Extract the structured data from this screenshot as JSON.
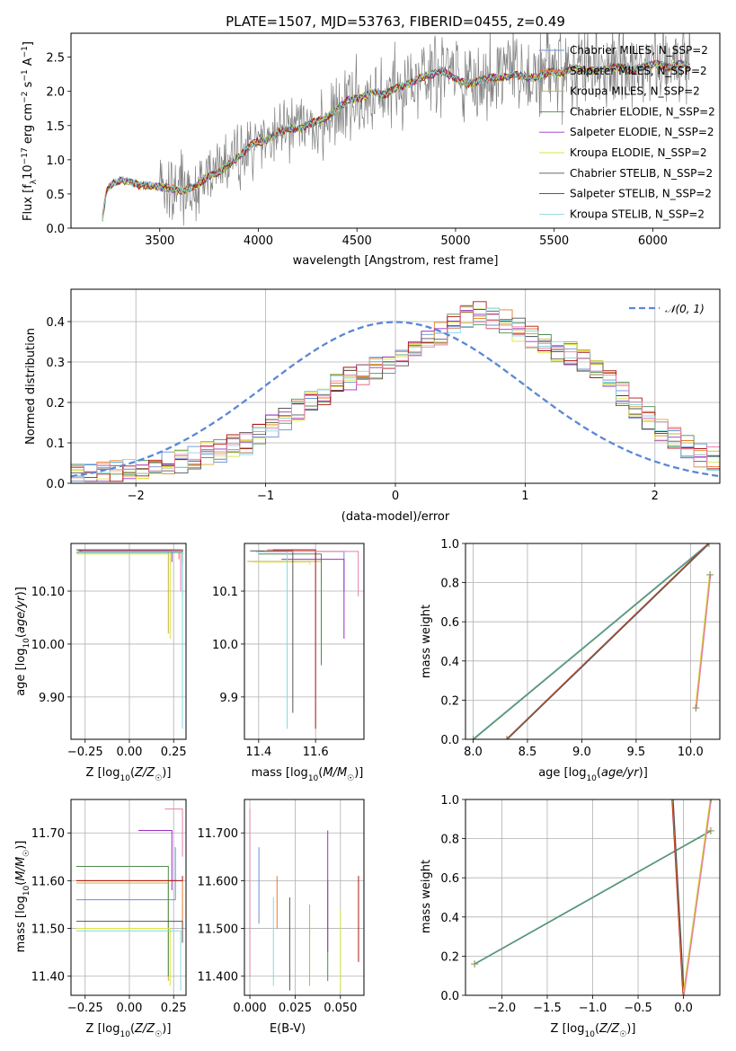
{
  "colors": {
    "Chabrier MILES": "#6b8ed6",
    "Salpeter MILES": "#e67a2a",
    "Kroupa MILES": "#c9b23a",
    "Chabrier ELODIE": "#4f8a4f",
    "Salpeter ELODIE": "#9b30c0",
    "Kroupa ELODIE": "#d8e640",
    "Chabrier STELIB": "#555555",
    "Salpeter STELIB": "#b01515",
    "Kroupa STELIB": "#86d8e0",
    "extra": "#e87fb0"
  },
  "chart_data": [
    {
      "type": "line",
      "title": "PLATE=1507, MJD=53763, FIBERID=0455, z=0.49",
      "xlabel": "wavelength [Angstrom, rest frame]",
      "ylabel": "Flux [f_λ10^-17 erg cm^-2 s^-1 A^-1]",
      "xlim": [
        3050,
        6340
      ],
      "ylim": [
        0,
        2.85
      ],
      "xticks": [
        3500,
        4000,
        4500,
        5000,
        5500,
        6000
      ],
      "yticks": [
        0.0,
        0.5,
        1.0,
        1.5,
        2.0,
        2.5
      ],
      "legend": "top-right",
      "series": [
        {
          "name": "Chabrier MILES, N_SSP=2"
        },
        {
          "name": "Salpeter MILES, N_SSP=2"
        },
        {
          "name": "Kroupa MILES, N_SSP=2"
        },
        {
          "name": "Chabrier ELODIE, N_SSP=2"
        },
        {
          "name": "Salpeter ELODIE, N_SSP=2"
        },
        {
          "name": "Kroupa ELODIE, N_SSP=2"
        },
        {
          "name": "Chabrier STELIB, N_SSP=2"
        },
        {
          "name": "Salpeter STELIB, N_SSP=2"
        },
        {
          "name": "Kroupa STELIB, N_SSP=2"
        }
      ],
      "model_x": [
        3210,
        3230,
        3260,
        3300,
        3350,
        3400,
        3450,
        3500,
        3560,
        3620,
        3680,
        3740,
        3800,
        3860,
        3920,
        3980,
        4040,
        4100,
        4160,
        4220,
        4280,
        4340,
        4400,
        4460,
        4520,
        4580,
        4640,
        4700,
        4760,
        4820,
        4880,
        4940,
        5000,
        5060,
        5120,
        5180,
        5240,
        5300,
        5360,
        5420,
        5480,
        5540,
        5600,
        5660,
        5720,
        5780,
        5840,
        5900,
        5960,
        6020,
        6080,
        6140,
        6190
      ],
      "model_y": [
        0.15,
        0.55,
        0.65,
        0.7,
        0.68,
        0.62,
        0.63,
        0.6,
        0.58,
        0.55,
        0.62,
        0.74,
        0.83,
        0.95,
        1.1,
        1.25,
        1.28,
        1.4,
        1.45,
        1.47,
        1.55,
        1.6,
        1.75,
        1.88,
        1.9,
        2.0,
        1.95,
        2.05,
        2.1,
        2.2,
        2.25,
        2.3,
        2.18,
        2.1,
        2.15,
        2.2,
        2.2,
        2.25,
        2.2,
        2.2,
        2.3,
        2.25,
        2.35,
        2.3,
        2.3,
        2.35,
        2.35,
        2.3,
        2.38,
        2.4,
        2.35,
        2.4,
        2.38
      ]
    },
    {
      "type": "bar",
      "xlabel": "(data-model)/error",
      "ylabel": "Normed distribution",
      "xlim": [
        -2.5,
        2.5
      ],
      "ylim": [
        0,
        0.48
      ],
      "xticks": [
        -2,
        -1,
        0,
        1,
        2
      ],
      "yticks": [
        0.0,
        0.1,
        0.2,
        0.3,
        0.4
      ],
      "legend": "top-right",
      "reference": {
        "name": "N(0,1)",
        "mu": 0,
        "sigma": 1
      },
      "bin_width": 0.1,
      "hist": [
        0.02,
        0.02,
        0.025,
        0.03,
        0.035,
        0.04,
        0.045,
        0.05,
        0.055,
        0.065,
        0.075,
        0.08,
        0.09,
        0.1,
        0.12,
        0.14,
        0.16,
        0.18,
        0.2,
        0.22,
        0.245,
        0.26,
        0.27,
        0.285,
        0.3,
        0.31,
        0.33,
        0.35,
        0.37,
        0.4,
        0.41,
        0.42,
        0.41,
        0.4,
        0.38,
        0.36,
        0.34,
        0.33,
        0.32,
        0.3,
        0.28,
        0.25,
        0.22,
        0.19,
        0.16,
        0.13,
        0.11,
        0.09,
        0.07,
        0.06
      ]
    },
    {
      "type": "line",
      "xlabel": "Z [log10(Z/Z☉)]",
      "ylabel": "age [log10(age/yr)]",
      "xlim": [
        -0.33,
        0.32
      ],
      "ylim": [
        9.82,
        10.19
      ],
      "xticks": [
        -0.25,
        0.0,
        0.25
      ],
      "yticks": [
        9.9,
        10.0,
        10.1
      ]
    },
    {
      "type": "line",
      "xlabel": "mass [log10(M/M☉)]",
      "xlim": [
        11.35,
        11.77
      ],
      "ylim": [
        9.82,
        10.19
      ],
      "xticks": [
        11.4,
        11.6
      ],
      "yticks": [
        9.9,
        10.0,
        10.1
      ]
    },
    {
      "type": "line",
      "xlabel": "age [log10(age/yr)]",
      "ylabel": "mass weight",
      "xlim": [
        7.93,
        10.27
      ],
      "ylim": [
        0,
        1
      ],
      "xticks": [
        8.0,
        8.5,
        9.0,
        9.5,
        10.0
      ],
      "yticks": [
        0.0,
        0.2,
        0.4,
        0.6,
        0.8,
        1.0
      ],
      "series": [
        {
          "x": [
            8.0,
            10.17
          ],
          "y": [
            0.0,
            1.0
          ]
        },
        {
          "x": [
            8.31,
            10.17
          ],
          "y": [
            0.0,
            1.0
          ]
        },
        {
          "x": [
            10.05,
            10.18
          ],
          "y": [
            0.16,
            0.84
          ]
        }
      ]
    },
    {
      "type": "line",
      "xlabel": "Z [log10(Z/Z☉)]",
      "ylabel": "mass [log10(M/M☉)]",
      "xlim": [
        -0.33,
        0.32
      ],
      "ylim": [
        11.36,
        11.77
      ],
      "xticks": [
        -0.25,
        0.0,
        0.25
      ],
      "yticks": [
        11.4,
        11.5,
        11.6,
        11.7
      ]
    },
    {
      "type": "line",
      "xlabel": "E(B-V)",
      "xlim": [
        -0.003,
        0.063
      ],
      "ylim": [
        11.36,
        11.77
      ],
      "xticks": [
        0.0,
        0.025,
        0.05
      ],
      "yticks": [
        11.4,
        11.5,
        11.6,
        11.7
      ]
    },
    {
      "type": "line",
      "xlabel": "Z [log10(Z/Z☉)]",
      "ylabel": "mass weight",
      "xlim": [
        -2.4,
        0.4
      ],
      "ylim": [
        0,
        1
      ],
      "xticks": [
        -2.0,
        -1.5,
        -1.0,
        -0.5,
        0.0
      ],
      "yticks": [
        0.0,
        0.2,
        0.4,
        0.6,
        0.8,
        1.0
      ],
      "series": [
        {
          "x": [
            -2.3,
            0.3
          ],
          "y": [
            0.16,
            0.84
          ]
        },
        {
          "x": [
            -0.12,
            0.0
          ],
          "y": [
            1.0,
            0.0
          ]
        },
        {
          "x": [
            0.0,
            0.3
          ],
          "y": [
            0.0,
            1.0
          ]
        }
      ]
    }
  ]
}
